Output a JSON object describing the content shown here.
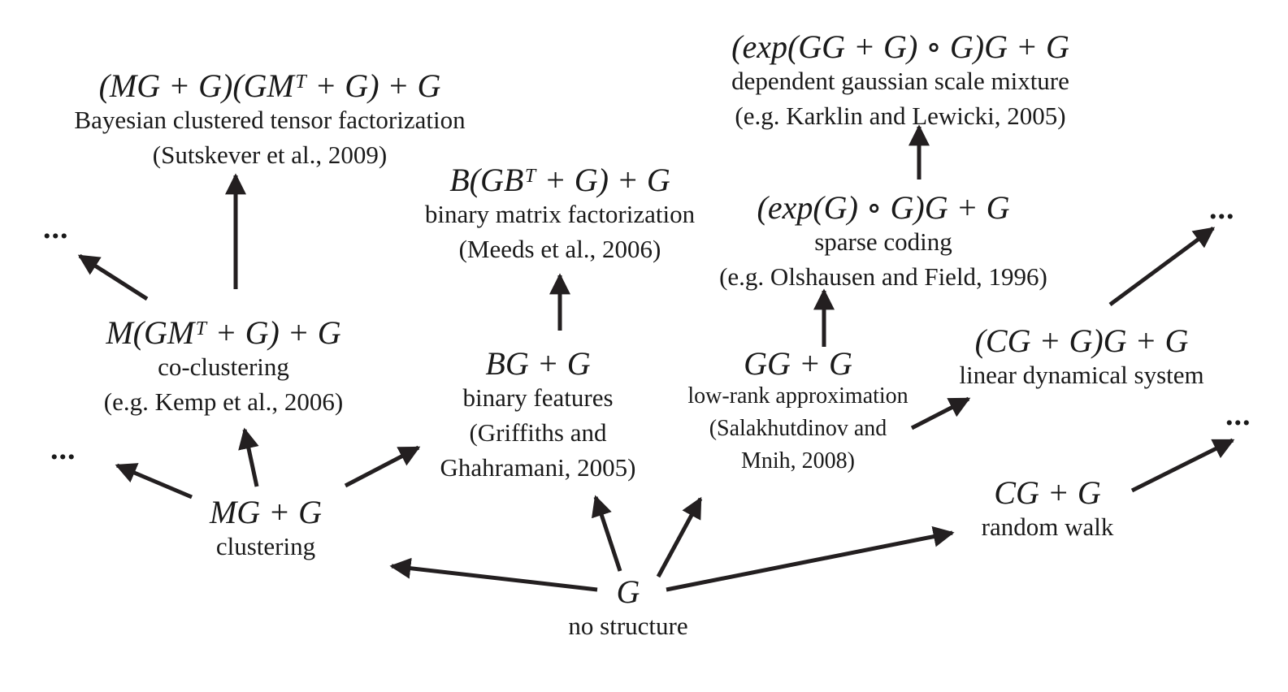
{
  "nodes": {
    "no_structure": {
      "formula": "G",
      "label": "no structure"
    },
    "clustering": {
      "formula": "MG + G",
      "label": "clustering"
    },
    "random_walk": {
      "formula": "CG + G",
      "label": "random walk"
    },
    "co_clustering": {
      "formula": "M(GMᵀ + G) + G",
      "label": "co-clustering",
      "cite": "(e.g. Kemp et al., 2006)"
    },
    "binary_features": {
      "formula": "BG + G",
      "label": "binary features",
      "cite1": "(Griffiths and",
      "cite2": "Ghahramani, 2005)"
    },
    "low_rank": {
      "formula": "GG + G",
      "label": "low-rank approximation",
      "cite1": "(Salakhutdinov and",
      "cite2": "Mnih, 2008)"
    },
    "linear_dynamical": {
      "formula": "(CG + G)G + G",
      "label": "linear dynamical system"
    },
    "bctf": {
      "formula": "(MG + G)(GMᵀ + G) + G",
      "label": "Bayesian clustered tensor factorization",
      "cite": "(Sutskever et al., 2009)"
    },
    "binary_matrix": {
      "formula": "B(GBᵀ + G) + G",
      "label": "binary matrix factorization",
      "cite": "(Meeds et al., 2006)"
    },
    "sparse_coding": {
      "formula": "(exp(G) ∘ G)G + G",
      "label": "sparse coding",
      "cite": "(e.g. Olshausen and Field, 1996)"
    },
    "dgsm": {
      "formula": "(exp(GG + G) ∘ G)G + G",
      "label": "dependent gaussian scale mixture",
      "cite": "(e.g. Karklin and Lewicki, 2005)"
    }
  },
  "ellipsis": "..."
}
